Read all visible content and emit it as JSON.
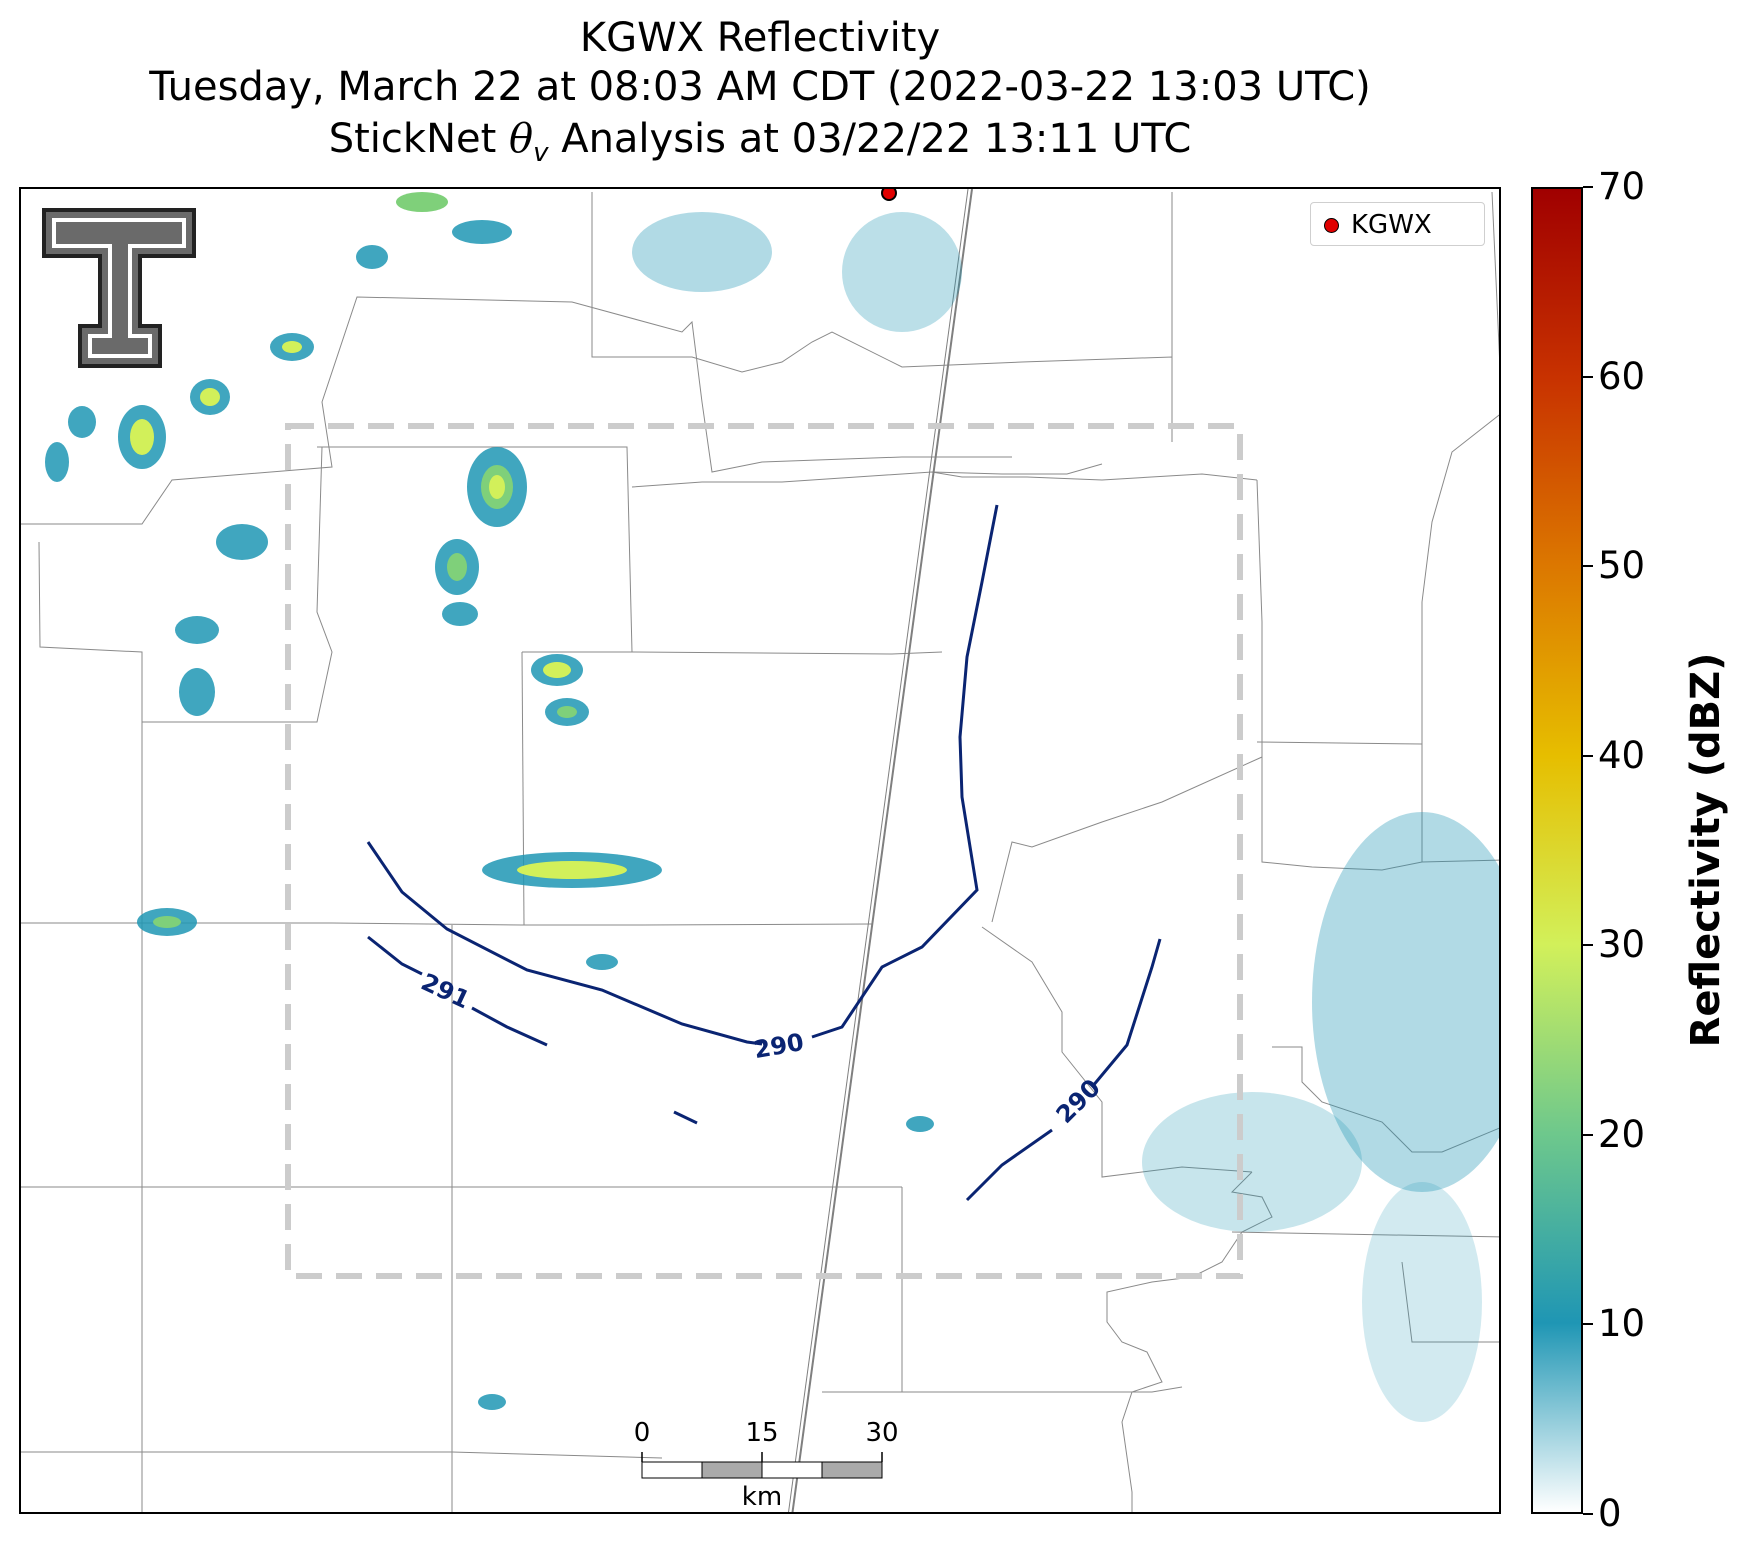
{
  "title": {
    "line1": "KGWX Reflectivity",
    "line2": "Tuesday, March 22 at 08:03 AM CDT (2022-03-22 13:03 UTC)",
    "line3_prefix": "StickNet ",
    "line3_symbol": "θ",
    "line3_subscript": "v",
    "line3_suffix": " Analysis at 03/22/22 13:11 UTC"
  },
  "legend": {
    "label": "KGWX",
    "marker_color": "#e00000"
  },
  "contours": {
    "labels": [
      "291",
      "290",
      "290"
    ],
    "color": "#0a2472"
  },
  "analysis_box_color": "#cccccc",
  "colorbar": {
    "label": "Reflectivity (dBZ)",
    "ticks": [
      "0",
      "10",
      "20",
      "30",
      "40",
      "50",
      "60",
      "70"
    ],
    "range": [
      0,
      70
    ],
    "colors": [
      "#ffffff",
      "#1f96b4",
      "#6ec88c",
      "#d2f05a",
      "#e6be00",
      "#dc7800",
      "#c83200",
      "#a00000"
    ]
  },
  "scalebar": {
    "ticks": [
      "0",
      "15",
      "30"
    ],
    "unit": "km"
  },
  "radar_site": "KGWX"
}
